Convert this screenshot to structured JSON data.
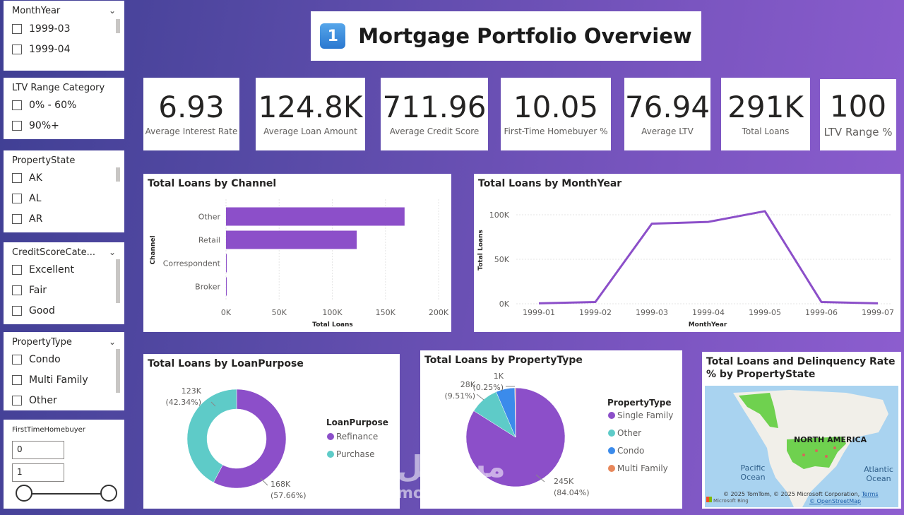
{
  "title": {
    "badge": "1",
    "text": "Mortgage Portfolio Overview"
  },
  "slicers": {
    "month_year": {
      "title": "MonthYear",
      "items": [
        "1999-03",
        "1999-04"
      ]
    },
    "ltv_range": {
      "title": "LTV Range Category",
      "items": [
        "0% - 60%",
        "90%+"
      ]
    },
    "property_state": {
      "title": "PropertyState",
      "items": [
        "AK",
        "AL",
        "AR"
      ]
    },
    "credit_score": {
      "title": "CreditScoreCate...",
      "items": [
        "Excellent",
        "Fair",
        "Good"
      ]
    },
    "property_type": {
      "title": "PropertyType",
      "items": [
        "Condo",
        "Multi Family",
        "Other"
      ]
    },
    "first_time": {
      "title": "FirstTimeHomebuyer",
      "min": "0",
      "max": "1"
    }
  },
  "kpis": [
    {
      "value": "6.93",
      "label": "Average Interest Rate"
    },
    {
      "value": "124.8K",
      "label": "Average Loan Amount"
    },
    {
      "value": "711.96",
      "label": "Average Credit Score"
    },
    {
      "value": "10.05",
      "label": "First-Time Homebuyer %"
    },
    {
      "value": "76.94",
      "label": "Average LTV"
    },
    {
      "value": "291K",
      "label": "Total Loans"
    },
    {
      "value": "100",
      "label": "LTV Range %"
    }
  ],
  "chart_data": [
    {
      "type": "bar",
      "orientation": "horizontal",
      "title": "Total Loans by Channel",
      "categories": [
        "Other",
        "Retail",
        "Correspondent",
        "Broker"
      ],
      "values": [
        168000,
        123000,
        500,
        300
      ],
      "xlabel": "Total Loans",
      "ylabel": "Channel",
      "xlim": [
        0,
        200000
      ],
      "xticks": [
        "0K",
        "50K",
        "100K",
        "150K",
        "200K"
      ],
      "color": "#8c4fc9"
    },
    {
      "type": "line",
      "title": "Total Loans by MonthYear",
      "x": [
        "1999-01",
        "1999-02",
        "1999-03",
        "1999-04",
        "1999-05",
        "1999-06",
        "1999-07"
      ],
      "values": [
        500,
        2000,
        90000,
        92000,
        104000,
        2000,
        500
      ],
      "xlabel": "MonthYear",
      "ylabel": "Total Loans",
      "ylim": [
        0,
        100000
      ],
      "yticks": [
        "0K",
        "50K",
        "100K"
      ],
      "color": "#8c4fc9"
    },
    {
      "type": "pie",
      "variant": "donut",
      "title": "Total Loans by LoanPurpose",
      "legend_title": "LoanPurpose",
      "slices": [
        {
          "name": "Refinance",
          "value": 168000,
          "label": "168K",
          "pct": "(57.66%)",
          "color": "#8c4fc9"
        },
        {
          "name": "Purchase",
          "value": 123000,
          "label": "123K",
          "pct": "(42.34%)",
          "color": "#5ecbc8"
        }
      ]
    },
    {
      "type": "pie",
      "title": "Total Loans by PropertyType",
      "legend_title": "PropertyType",
      "slices": [
        {
          "name": "Single Family",
          "value": 245000,
          "label": "245K",
          "pct": "(84.04%)",
          "color": "#8c4fc9"
        },
        {
          "name": "Other",
          "value": 28000,
          "label": "28K",
          "pct": "(9.51%)",
          "color": "#5ecbc8"
        },
        {
          "name": "Condo",
          "value": 18000,
          "label": "",
          "pct": "",
          "color": "#3b8beb"
        },
        {
          "name": "Multi Family",
          "value": 730,
          "label": "1K",
          "pct": "(0.25%)",
          "color": "#e8875a"
        }
      ]
    }
  ],
  "map": {
    "title": "Total Loans and Delinquency Rate % by PropertyState",
    "labels": {
      "continent": "NORTH AMERICA",
      "pacific": "Pacific Ocean",
      "atlantic": "Atlantic Ocean"
    },
    "attribution": "© 2025 TomTom, © 2025 Microsoft Corporation,",
    "terms": "Terms",
    "osm": "© OpenStreetMap",
    "bing": "Microsoft Bing"
  },
  "watermark": {
    "arabic": "مستقل",
    "latin": "mostaql.com"
  }
}
